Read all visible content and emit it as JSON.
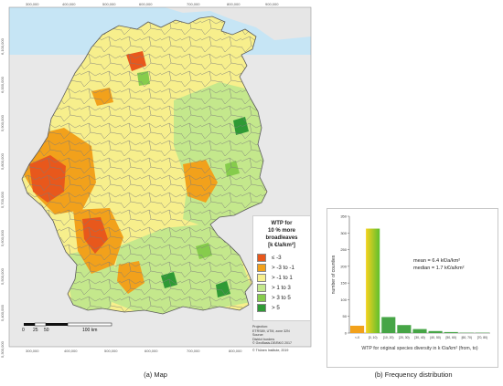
{
  "map": {
    "top_ticks": [
      "300,000",
      "400,000",
      "500,000",
      "600,000",
      "700,000",
      "800,000",
      "900,000"
    ],
    "bottom_ticks": [
      "300,000",
      "400,000",
      "500,000",
      "600,000",
      "700,000",
      "800,000"
    ],
    "left_ticks": [
      "6,100,000",
      "6,000,000",
      "5,900,000",
      "5,800,000",
      "5,700,000",
      "5,600,000",
      "5,500,000",
      "5,400,000",
      "5,300,000"
    ],
    "colors": {
      "le_m3": "#e8581c",
      "m3_m1": "#f2a11b",
      "m1_1": "#f7ef8c",
      "g1_3": "#c4e88c",
      "g3_5": "#86cc4c",
      "g5": "#2f9a35",
      "sea": "#c6e5f5",
      "neighbours": "#e8e8e8",
      "border": "#808080"
    },
    "legend": {
      "title": [
        "WTP for",
        "10 % more",
        "broadleaves",
        "[k €/a/km²]"
      ],
      "items": [
        {
          "label": "≤ -3",
          "color": "#e8581c"
        },
        {
          "label": "> -3  to  -1",
          "color": "#f2a11b"
        },
        {
          "label": "> -1 to 1",
          "color": "#f7ef8c"
        },
        {
          "label": "> 1 to 3",
          "color": "#c4e88c"
        },
        {
          "label": "> 3 to 5",
          "color": "#86cc4c"
        },
        {
          "label": "> 5",
          "color": "#2f9a35"
        }
      ]
    },
    "meta": [
      "Projection:",
      "ETRS89, UTM, zone 32N",
      "Source:",
      "District borders",
      "© GeoBasis-DE/BKG 2017",
      "",
      "© Thünen Institute, 2019"
    ],
    "scale": {
      "ticks": [
        "0",
        "25",
        "50"
      ],
      "end_label": "100 km"
    },
    "caption": "(a) Map"
  },
  "histogram": {
    "caption": "(b) Frequency distribution",
    "chart_data": {
      "type": "bar",
      "categories": [
        "<-0",
        "[0, 10)",
        "[10, 20)",
        "[20, 30)",
        "[30, 40)",
        "[40, 50)",
        "[50, 60)",
        "[60, 70)",
        "[70, 80)"
      ],
      "values": [
        22,
        313,
        48,
        24,
        12,
        6,
        3,
        1,
        1
      ],
      "ylabel": "number of counties",
      "xlabel": "WTP for original species diversity in k €/a/km² (from, to)",
      "yticks": [
        "0",
        "50",
        "100",
        "150",
        "200",
        "250",
        "300",
        "350"
      ],
      "ylim": [
        0,
        350
      ],
      "annotations": [
        "mean = 6.4 k€/a/km²",
        "median = 1.7 k€/a/km²"
      ],
      "colors": [
        "#f2a11b",
        "#c9e030",
        "#46a546",
        "#46a546",
        "#46a546",
        "#46a546",
        "#46a546",
        "#46a546",
        "#46a546"
      ]
    }
  }
}
